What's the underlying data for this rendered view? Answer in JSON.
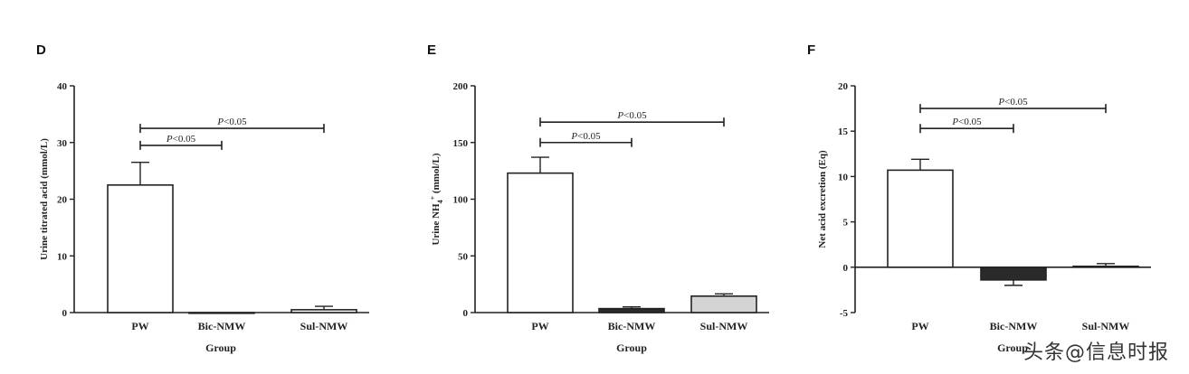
{
  "watermark": "头条@信息时报",
  "chart_data": [
    {
      "type": "bar",
      "panel": "D",
      "categories": [
        "PW",
        "Bic-NMW",
        "Sul-NMW"
      ],
      "values": [
        22.5,
        0,
        0.5
      ],
      "errors": [
        4.0,
        0,
        0.6
      ],
      "bar_colors": [
        "#ffffff",
        "#ffffff",
        "#ffffff"
      ],
      "ylabel": "Urine titrated acid (mmol/L)",
      "xlabel": "Group",
      "ylim": [
        0,
        40
      ],
      "yticks": [
        0,
        10,
        20,
        30,
        40
      ],
      "significance": [
        {
          "from": 0,
          "to": 1,
          "y": 29.5,
          "label": "P<0.05"
        },
        {
          "from": 0,
          "to": 2,
          "y": 32.5,
          "label": "P<0.05"
        }
      ]
    },
    {
      "type": "bar",
      "panel": "E",
      "categories": [
        "PW",
        "Bic-NMW",
        "Sul-NMW"
      ],
      "values": [
        123,
        3.5,
        14.5
      ],
      "errors": [
        14,
        1.5,
        2
      ],
      "bar_colors": [
        "#ffffff",
        "#2a2a2a",
        "#d4d4d4"
      ],
      "ylabel": "Urine NH4+ (mmol/L)",
      "xlabel": "Group",
      "ylim": [
        0,
        200
      ],
      "yticks": [
        0,
        50,
        100,
        150,
        200
      ],
      "significance": [
        {
          "from": 0,
          "to": 1,
          "y": 150,
          "label": "P<0.05"
        },
        {
          "from": 0,
          "to": 2,
          "y": 168,
          "label": "P<0.05"
        }
      ]
    },
    {
      "type": "bar",
      "panel": "F",
      "categories": [
        "PW",
        "Bic-NMW",
        "Sul-NMW"
      ],
      "values": [
        10.7,
        -1.4,
        0.1
      ],
      "errors": [
        1.2,
        0.6,
        0.3
      ],
      "bar_colors": [
        "#ffffff",
        "#2a2a2a",
        "#d4d4d4"
      ],
      "ylabel": "Net acid excretion (Eq)",
      "xlabel": "Group",
      "ylim": [
        -5,
        20
      ],
      "yticks": [
        -5,
        0,
        5,
        10,
        15,
        20
      ],
      "significance": [
        {
          "from": 0,
          "to": 1,
          "y": 15.3,
          "label": "P<0.05"
        },
        {
          "from": 0,
          "to": 2,
          "y": 17.5,
          "label": "P<0.05"
        }
      ]
    }
  ]
}
